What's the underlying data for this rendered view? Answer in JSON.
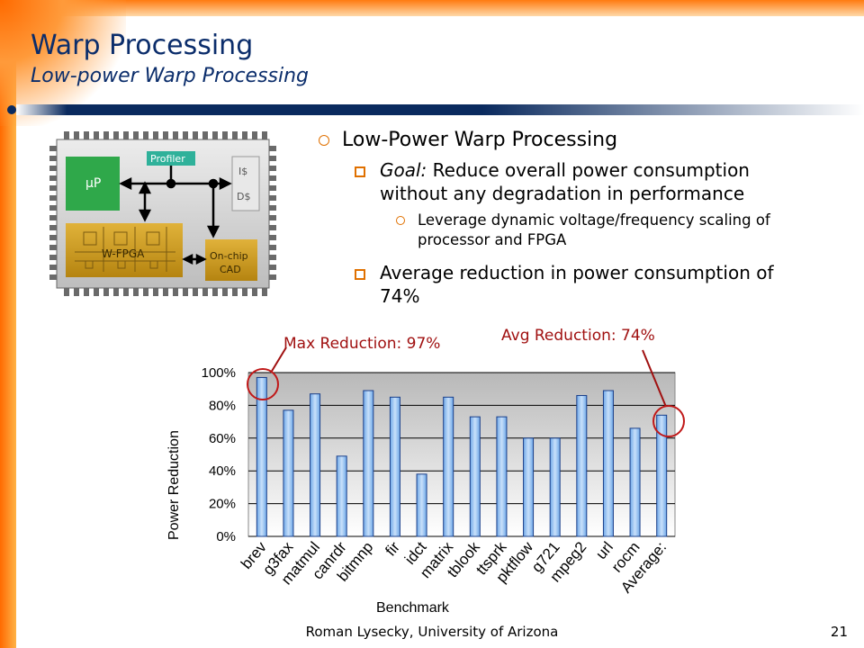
{
  "slide": {
    "title": "Warp Processing",
    "subtitle": "Low-power Warp Processing",
    "footer": "Roman Lysecky, University of Arizona",
    "page_number": "21"
  },
  "bullets": {
    "level1": "Low-Power Warp Processing",
    "goal_label": "Goal:",
    "goal_text": " Reduce overall power consumption without any degradation in performance",
    "sub_item": "Leverage dynamic voltage/frequency scaling of processor and FPGA",
    "result": "Average reduction in power consumption of 74%"
  },
  "diagram": {
    "profiler": "Profiler",
    "up": "µP",
    "icache": "I$",
    "dcache": "D$",
    "wfpga": "W-FPGA",
    "cad_line1": "On-chip",
    "cad_line2": "CAD"
  },
  "callouts": {
    "max": "Max Reduction: 97%",
    "avg": "Avg Reduction: 74%"
  },
  "chart_data": {
    "type": "bar",
    "categories": [
      "brev",
      "g3fax",
      "matmul",
      "canrdr",
      "bitmnp",
      "fir",
      "idct",
      "matrix",
      "tblook",
      "ttsprk",
      "pktflow",
      "g721",
      "mpeg2",
      "url",
      "rocm",
      "Average:"
    ],
    "values": [
      97,
      77,
      87,
      49,
      89,
      85,
      38,
      85,
      73,
      73,
      60,
      60,
      86,
      89,
      66,
      74
    ],
    "xlabel": "Benchmark",
    "ylabel": "Power Reduction",
    "ylim": [
      0,
      100
    ],
    "yticks": [
      "0%",
      "20%",
      "40%",
      "60%",
      "80%",
      "100%"
    ],
    "grid": true,
    "legend": "none",
    "colors": {
      "bar_top": "#6fa8e8",
      "bar_bottom": "#c8e0fa",
      "plot_bg_top": "#b8b8b8",
      "plot_bg_bottom": "#ffffff",
      "circle": "#c01818"
    }
  }
}
